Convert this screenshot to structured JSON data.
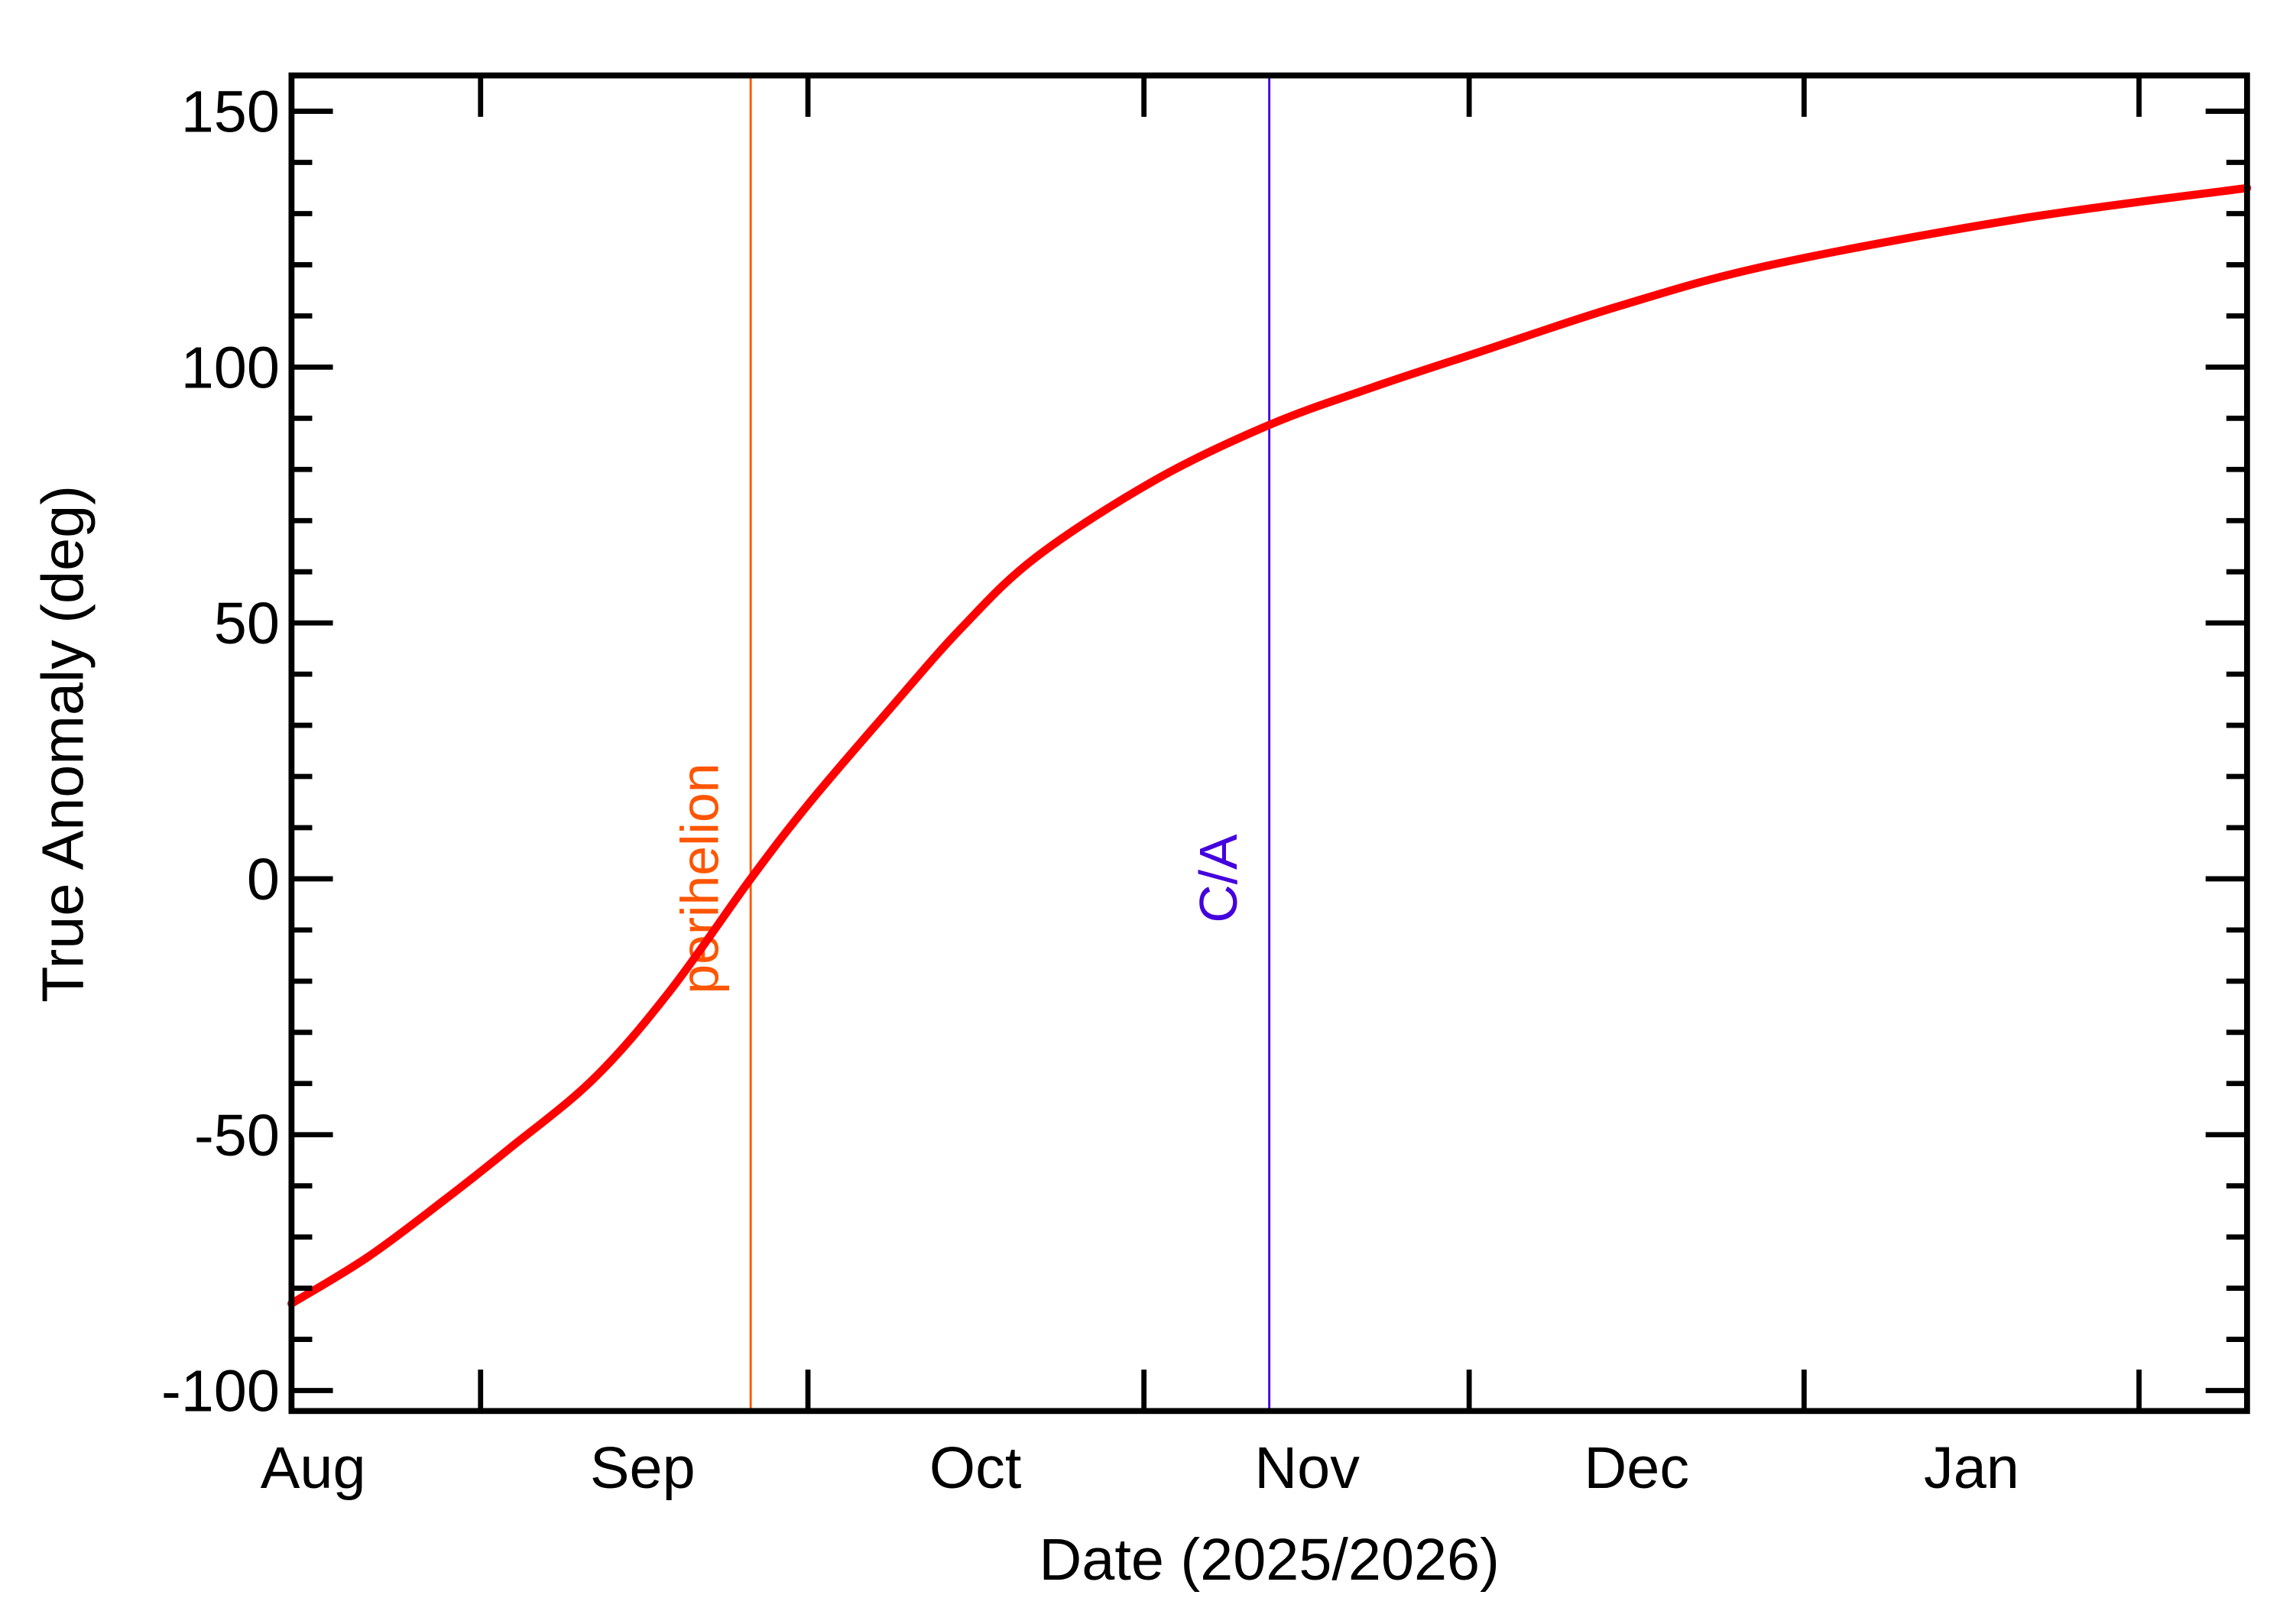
{
  "chart_data": {
    "type": "line",
    "title": "",
    "xlabel": "Date (2025/2026)",
    "ylabel": "True Anomaly (deg)",
    "x_units": "days since 2025-08-01",
    "xlim": [
      0,
      181
    ],
    "ylim": [
      -104,
      157
    ],
    "x_tick_labels": [
      {
        "label": "Aug",
        "x": 2
      },
      {
        "label": "Sep",
        "x": 32.5
      },
      {
        "label": "Oct",
        "x": 63.3
      },
      {
        "label": "Nov",
        "x": 94
      },
      {
        "label": "Dec",
        "x": 124.5
      },
      {
        "label": "Jan",
        "x": 155.5
      }
    ],
    "x_major_ticks": [
      17.5,
      47.8,
      78.9,
      109,
      140,
      171
    ],
    "y_ticks": [
      -100,
      -50,
      0,
      50,
      100,
      150
    ],
    "y_tick_labels": [
      "-100",
      "-50",
      "0",
      "50",
      "100",
      "150"
    ],
    "y_minor_step": 10,
    "grid": false,
    "series": [
      {
        "name": "True Anomaly",
        "color": "#ff0000",
        "x": [
          0,
          7,
          14,
          20,
          28,
          35,
          42.5,
          48,
          55.3,
          62,
          69,
          80,
          90.5,
          100,
          110,
          123,
          137,
          160,
          181
        ],
        "y": [
          -83,
          -74,
          -63,
          -53,
          -39,
          -22,
          0,
          15,
          33,
          49,
          63,
          78,
          88.7,
          96,
          103,
          112,
          120,
          129,
          135
        ]
      }
    ],
    "annotations": [
      {
        "label": "perihelion",
        "x": 42.5,
        "color": "#ff5500"
      },
      {
        "label": "C/A",
        "x": 90.5,
        "color": "#4400dd"
      }
    ]
  }
}
